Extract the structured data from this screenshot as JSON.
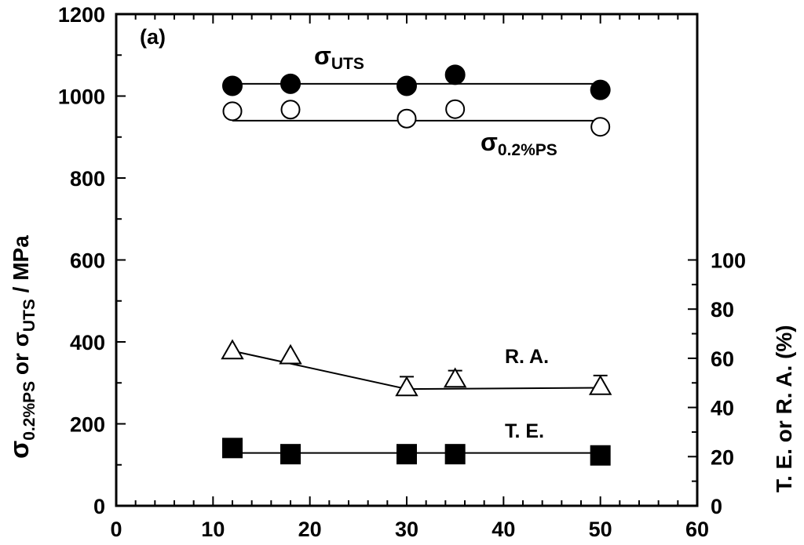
{
  "chart_data": {
    "type": "scatter",
    "panel_label": "(a)",
    "x": [
      12,
      18,
      30,
      35,
      50
    ],
    "xlabel": "",
    "xlim": [
      0,
      60
    ],
    "xticks": [
      "0",
      "10",
      "20",
      "30",
      "40",
      "50",
      "60"
    ],
    "ylabel_left": {
      "main": "σ",
      "sub1": "0.2%PS",
      "mid": " or σ",
      "sub2": "UTS",
      "end": " / MPa"
    },
    "ylim_left": [
      0,
      1200
    ],
    "yticks_left": [
      "0",
      "200",
      "400",
      "600",
      "800",
      "1000",
      "1200"
    ],
    "ylabel_right": "T. E. or R. A. (%)",
    "ylim_right": [
      0,
      100
    ],
    "yticks_right": [
      "0",
      "20",
      "40",
      "60",
      "80",
      "100"
    ],
    "series": [
      {
        "name": "σUTS",
        "label_main": "σ",
        "label_sub": "UTS",
        "axis": "left",
        "marker": "filled-circle",
        "values": [
          1025,
          1030,
          1025,
          1052,
          1015
        ],
        "fit": [
          1030,
          1030
        ]
      },
      {
        "name": "σ0.2%PS",
        "label_main": "σ",
        "label_sub": "0.2%PS",
        "axis": "left",
        "marker": "open-circle",
        "values": [
          963,
          967,
          945,
          968,
          925
        ],
        "fit": [
          940,
          940
        ]
      },
      {
        "name": "R. A.",
        "label_main": "R. A.",
        "label_sub": "",
        "axis": "right",
        "marker": "open-triangle",
        "values": [
          63,
          61,
          48,
          51.5,
          48.5
        ],
        "err_up": [
          0,
          0,
          4.5,
          3.5,
          4.5
        ],
        "fit_x": [
          12,
          30,
          50
        ],
        "fit": [
          63,
          47.5,
          48
        ]
      },
      {
        "name": "T. E.",
        "label_main": "T. E.",
        "label_sub": "",
        "axis": "right",
        "marker": "filled-square",
        "values": [
          23.5,
          21,
          21,
          21,
          20.5
        ],
        "fit": [
          21.5,
          21.5
        ]
      }
    ],
    "grid": false
  }
}
